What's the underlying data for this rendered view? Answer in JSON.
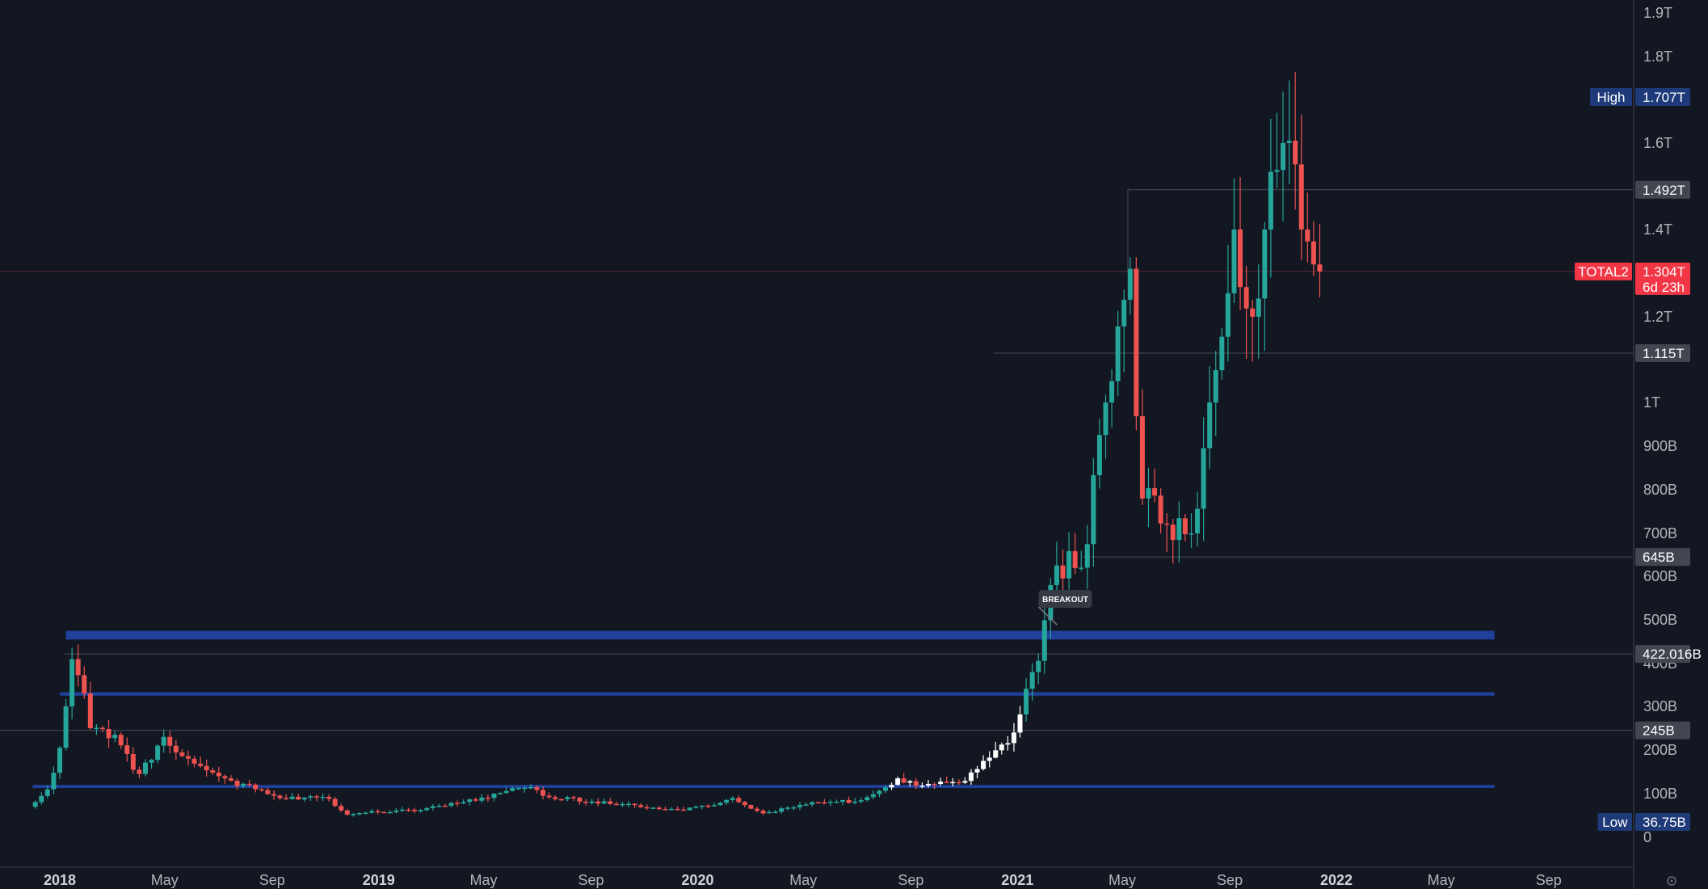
{
  "chart_data": {
    "type": "candlestick",
    "symbol": "TOTAL2",
    "scale": "log",
    "y_axis": {
      "ticks": [
        "1.9T",
        "1.8T",
        "1.6T",
        "1.4T",
        "1.2T",
        "1T",
        "900B",
        "800B",
        "700B",
        "600B",
        "500B",
        "400B",
        "300B",
        "200B",
        "100B",
        "0"
      ],
      "tick_values": [
        1900,
        1800,
        1600,
        1400,
        1200,
        1000,
        900,
        800,
        700,
        600,
        500,
        400,
        300,
        200,
        100,
        0
      ],
      "unit": "billions"
    },
    "x_axis": {
      "ticks": [
        "2018",
        "May",
        "Sep",
        "2019",
        "May",
        "Sep",
        "2020",
        "May",
        "Sep",
        "2021",
        "May",
        "Sep",
        "2022",
        "May",
        "Sep"
      ],
      "tick_dates": [
        "2018-01-01",
        "2018-05-01",
        "2018-09-01",
        "2019-01-01",
        "2019-05-01",
        "2019-09-01",
        "2020-01-01",
        "2020-05-01",
        "2020-09-01",
        "2021-01-01",
        "2021-05-01",
        "2021-09-01",
        "2022-01-01",
        "2022-05-01",
        "2022-09-01"
      ]
    },
    "price_labels": [
      {
        "label": "High",
        "value": "1.707T",
        "kind": "high"
      },
      {
        "label": "",
        "value": "1.492T",
        "kind": "level"
      },
      {
        "label": "TOTAL2",
        "value": "1.304T",
        "extra": "6d 23h",
        "kind": "current"
      },
      {
        "label": "",
        "value": "1.115T",
        "kind": "level"
      },
      {
        "label": "",
        "value": "645B",
        "kind": "level"
      },
      {
        "label": "",
        "value": "422.016B",
        "kind": "level"
      },
      {
        "label": "",
        "value": "245B",
        "kind": "level"
      },
      {
        "label": "Low",
        "value": "36.75B",
        "kind": "low"
      }
    ],
    "horizontal_levels_billions": [
      1492,
      1304,
      1115,
      645,
      422.016,
      245
    ],
    "zones": [
      {
        "from": "2018-01-08",
        "to": "2022-07-01",
        "low": 455,
        "high": 475
      },
      {
        "from": "2018-01-01",
        "to": "2022-07-01",
        "low": 325,
        "high": 333
      },
      {
        "from": "2017-12-01",
        "to": "2022-07-01",
        "low": 113,
        "high": 120
      }
    ],
    "annotations": [
      {
        "text": "BREAKOUT",
        "date": "2021-02-22",
        "value": 548,
        "pointer_date": "2021-02-08",
        "pointer_value": 470
      }
    ],
    "colors": {
      "background": "#131722",
      "up": "#26a69a",
      "down": "#ef5350",
      "zone": "#2962ff",
      "high_low_badge": "#1e3a78",
      "level_badge": "#434651",
      "current_badge": "#f23645",
      "white_candle": "#ffffff"
    },
    "weekly_close_anchors": [
      [
        "2017-11-27",
        70
      ],
      [
        "2017-12-18",
        110
      ],
      [
        "2018-01-08",
        300
      ],
      [
        "2018-01-15",
        410
      ],
      [
        "2018-01-29",
        330
      ],
      [
        "2018-02-05",
        250
      ],
      [
        "2018-03-05",
        235
      ],
      [
        "2018-04-02",
        145
      ],
      [
        "2018-04-30",
        230
      ],
      [
        "2018-05-28",
        180
      ],
      [
        "2018-07-02",
        140
      ],
      [
        "2018-08-13",
        110
      ],
      [
        "2018-09-10",
        90
      ],
      [
        "2018-11-05",
        88
      ],
      [
        "2018-11-26",
        52
      ],
      [
        "2018-12-24",
        60
      ],
      [
        "2019-02-11",
        60
      ],
      [
        "2019-04-01",
        78
      ],
      [
        "2019-05-13",
        100
      ],
      [
        "2019-06-24",
        115
      ],
      [
        "2019-07-15",
        92
      ],
      [
        "2019-09-02",
        82
      ],
      [
        "2019-10-07",
        76
      ],
      [
        "2019-12-16",
        62
      ],
      [
        "2020-02-10",
        90
      ],
      [
        "2020-03-16",
        55
      ],
      [
        "2020-05-04",
        75
      ],
      [
        "2020-07-06",
        85
      ],
      [
        "2020-08-17",
        135
      ],
      [
        "2020-09-07",
        118
      ],
      [
        "2020-10-26",
        125
      ],
      [
        "2020-11-23",
        175
      ],
      [
        "2020-12-28",
        240
      ],
      [
        "2021-01-18",
        380
      ],
      [
        "2021-02-15",
        625
      ],
      [
        "2021-03-15",
        620
      ],
      [
        "2021-04-12",
        1000
      ],
      [
        "2021-05-10",
        1310
      ],
      [
        "2021-05-24",
        780
      ],
      [
        "2021-06-21",
        720
      ],
      [
        "2021-07-19",
        700
      ],
      [
        "2021-08-09",
        1000
      ],
      [
        "2021-09-06",
        1400
      ],
      [
        "2021-09-27",
        1200
      ],
      [
        "2021-10-11",
        1400
      ],
      [
        "2021-11-01",
        1600
      ],
      [
        "2021-11-22",
        1400
      ],
      [
        "2021-12-06",
        1320
      ],
      [
        "2021-12-13",
        1304
      ]
    ]
  }
}
